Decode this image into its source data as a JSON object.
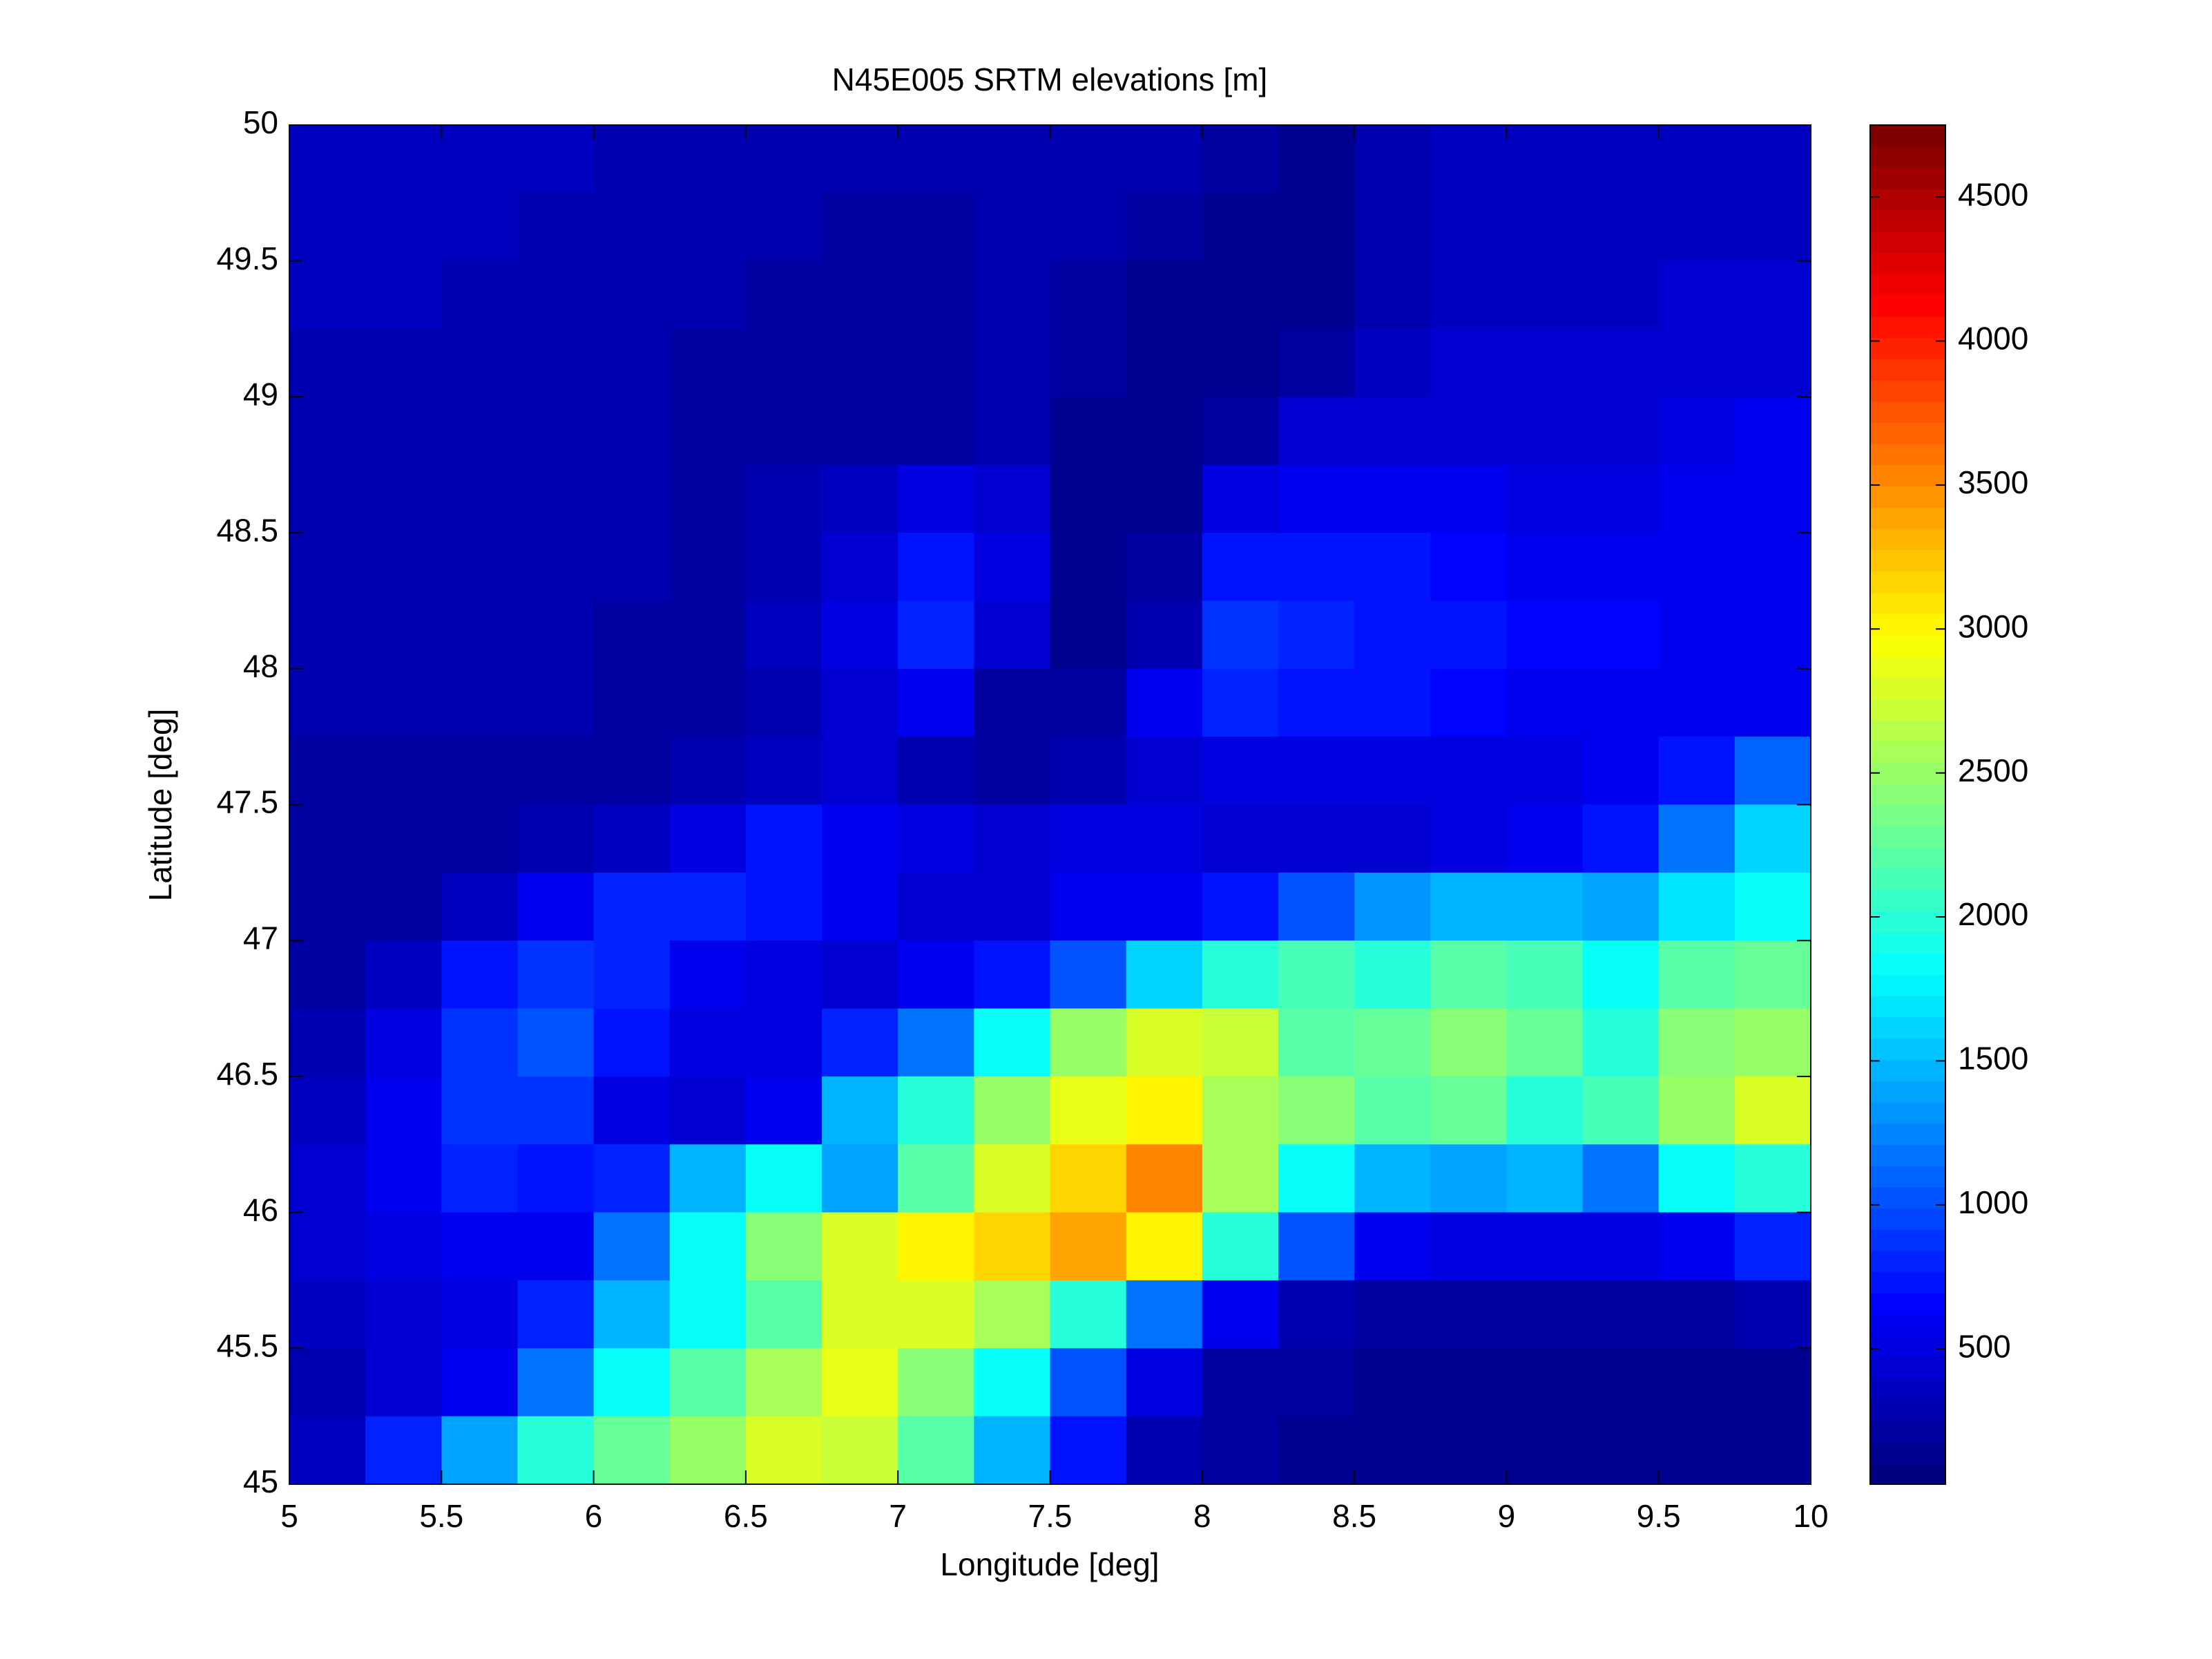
{
  "chart_data": {
    "type": "heatmap",
    "title": "N45E005 SRTM elevations [m]",
    "x_label": "Longitude [deg]",
    "y_label": "Latitude [deg]",
    "colormap": "jet",
    "xlim": [
      5,
      10
    ],
    "ylim": [
      45,
      50
    ],
    "xticks": [
      5,
      5.5,
      6,
      6.5,
      7,
      7.5,
      8,
      8.5,
      9,
      9.5,
      10
    ],
    "yticks": [
      45,
      45.5,
      46,
      46.5,
      47,
      47.5,
      48,
      48.5,
      49,
      49.5,
      50
    ],
    "clim": [
      30,
      4750
    ],
    "cticks": [
      500,
      1000,
      1500,
      2000,
      2500,
      3000,
      3500,
      4000,
      4500
    ],
    "x": [
      5.125,
      5.375,
      5.625,
      5.875,
      6.125,
      6.375,
      6.625,
      6.875,
      7.125,
      7.375,
      7.625,
      7.875,
      8.125,
      8.375,
      8.625,
      8.875,
      9.125,
      9.375,
      9.625,
      9.875
    ],
    "y": [
      49.875,
      49.625,
      49.375,
      49.125,
      48.875,
      48.625,
      48.375,
      48.125,
      47.875,
      47.625,
      47.375,
      47.125,
      46.875,
      46.625,
      46.375,
      46.125,
      45.875,
      45.625,
      45.375,
      45.125
    ],
    "z": [
      [
        350,
        350,
        350,
        350,
        320,
        300,
        300,
        300,
        300,
        300,
        300,
        280,
        250,
        150,
        300,
        350,
        350,
        350,
        350,
        350
      ],
      [
        350,
        350,
        330,
        320,
        300,
        300,
        280,
        250,
        250,
        300,
        300,
        250,
        150,
        120,
        300,
        350,
        350,
        350,
        350,
        350
      ],
      [
        330,
        330,
        320,
        300,
        280,
        270,
        250,
        230,
        250,
        300,
        250,
        150,
        120,
        150,
        300,
        350,
        350,
        380,
        400,
        400
      ],
      [
        300,
        300,
        300,
        280,
        270,
        250,
        230,
        230,
        250,
        280,
        200,
        120,
        120,
        250,
        350,
        400,
        400,
        400,
        420,
        450
      ],
      [
        300,
        300,
        300,
        280,
        260,
        250,
        230,
        230,
        250,
        300,
        160,
        130,
        200,
        400,
        450,
        450,
        450,
        450,
        480,
        550
      ],
      [
        300,
        300,
        300,
        280,
        260,
        250,
        300,
        350,
        500,
        400,
        150,
        150,
        500,
        600,
        600,
        550,
        500,
        500,
        550,
        600
      ],
      [
        300,
        300,
        300,
        280,
        260,
        250,
        300,
        400,
        700,
        500,
        150,
        200,
        700,
        750,
        700,
        650,
        600,
        600,
        600,
        600
      ],
      [
        300,
        300,
        300,
        280,
        250,
        250,
        350,
        500,
        800,
        400,
        150,
        300,
        850,
        800,
        750,
        700,
        650,
        620,
        600,
        580
      ],
      [
        280,
        280,
        270,
        260,
        250,
        250,
        300,
        450,
        600,
        250,
        200,
        550,
        800,
        750,
        700,
        650,
        600,
        580,
        560,
        550
      ],
      [
        250,
        250,
        250,
        250,
        250,
        280,
        350,
        400,
        300,
        250,
        300,
        450,
        500,
        500,
        500,
        480,
        500,
        550,
        700,
        1100
      ],
      [
        230,
        230,
        250,
        280,
        350,
        500,
        700,
        600,
        500,
        450,
        500,
        500,
        450,
        400,
        450,
        500,
        600,
        700,
        1200,
        1600
      ],
      [
        220,
        250,
        350,
        600,
        800,
        800,
        700,
        550,
        450,
        450,
        550,
        600,
        700,
        1000,
        1300,
        1500,
        1500,
        1400,
        1700,
        1800
      ],
      [
        230,
        350,
        700,
        900,
        800,
        600,
        500,
        450,
        600,
        700,
        1000,
        1600,
        2000,
        2100,
        2000,
        2200,
        2100,
        1800,
        2200,
        2300
      ],
      [
        300,
        500,
        900,
        1000,
        700,
        500,
        500,
        800,
        1200,
        1800,
        2500,
        2800,
        2700,
        2200,
        2300,
        2400,
        2300,
        2000,
        2400,
        2500
      ],
      [
        350,
        600,
        900,
        900,
        500,
        400,
        600,
        1500,
        2000,
        2500,
        2900,
        3000,
        2600,
        2400,
        2200,
        2300,
        2000,
        2100,
        2500,
        2800
      ],
      [
        400,
        600,
        800,
        700,
        800,
        1500,
        1800,
        1400,
        2200,
        2800,
        3200,
        3500,
        2600,
        1800,
        1500,
        1400,
        1500,
        1200,
        1800,
        2000
      ],
      [
        400,
        500,
        600,
        600,
        1200,
        1800,
        2400,
        2800,
        3000,
        3200,
        3400,
        3000,
        2000,
        1000,
        600,
        500,
        500,
        500,
        600,
        800
      ],
      [
        350,
        450,
        500,
        800,
        1500,
        1800,
        2200,
        2800,
        2800,
        2600,
        2000,
        1200,
        600,
        300,
        200,
        200,
        200,
        200,
        250,
        300
      ],
      [
        300,
        400,
        600,
        1200,
        1800,
        2200,
        2600,
        2900,
        2400,
        1800,
        1000,
        500,
        250,
        200,
        150,
        150,
        150,
        150,
        150,
        150
      ],
      [
        350,
        800,
        1400,
        2000,
        2300,
        2500,
        2800,
        2700,
        2200,
        1500,
        700,
        300,
        200,
        150,
        120,
        120,
        120,
        120,
        120,
        120
      ]
    ]
  }
}
